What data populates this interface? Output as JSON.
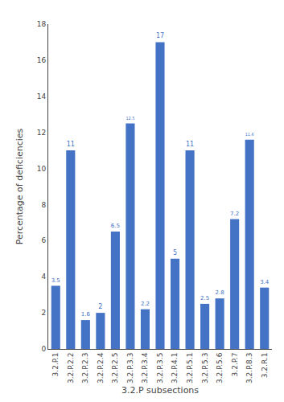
{
  "chart_data": {
    "type": "bar",
    "xlabel": "3.2.P subsections",
    "ylabel": "Percentage of deficiencies",
    "categories": [
      "3.2.P.1",
      "3.2.P.2.2",
      "3.2.P.2.3",
      "3.2.P.2.4",
      "3.2.P.2.5",
      "3.2.P.3.3",
      "3.2.P.3.4",
      "3.2.P.3.5",
      "3.2.P.4.1",
      "3.2.P.5.1",
      "3.2.P.5.3",
      "3.2.P.5.6",
      "3.2.P.7",
      "3.2.P.8.3",
      "3.2.R.1"
    ],
    "values": [
      3.5,
      11,
      1.6,
      2,
      6.5,
      12.5,
      2.2,
      17,
      5,
      11,
      2.5,
      2.8,
      7.2,
      11.6,
      3.4
    ],
    "color": "#4472c4",
    "ylim": [
      0,
      18
    ],
    "yticks": [
      0,
      2,
      4,
      6,
      8,
      10,
      12,
      14,
      16,
      18
    ],
    "grid": false,
    "data_labels": true
  }
}
